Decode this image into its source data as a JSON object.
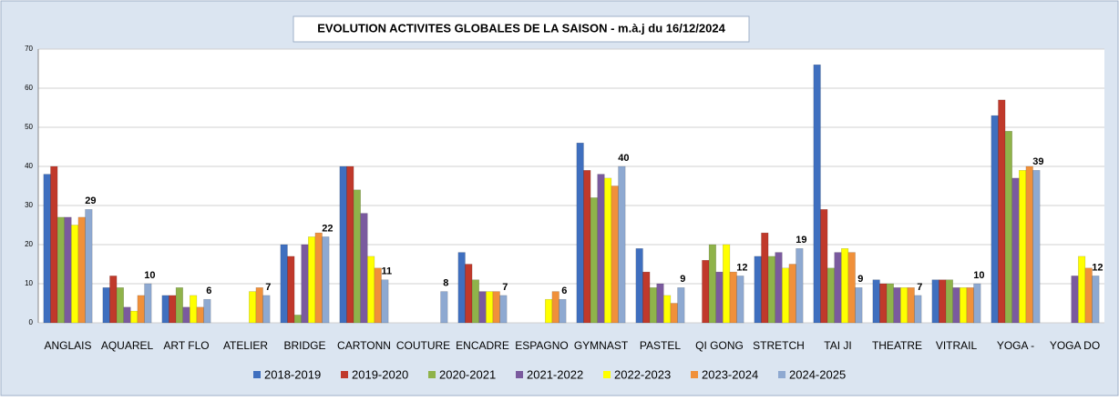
{
  "chart_data": {
    "type": "bar",
    "title": "EVOLUTION ACTIVITES GLOBALES DE LA SAISON - m.à.j du 16/12/2024",
    "categories": [
      "ANGLAIS",
      "AQUAREL",
      "ART FLO",
      "ATELIER",
      "BRIDGE",
      "CARTONN",
      "COUTURE",
      "ENCADRE",
      "ESPAGNO",
      "GYMNAST",
      "PASTEL",
      "QI GONG",
      "STRETCH",
      "TAI JI",
      "THEATRE",
      "VITRAIL",
      "YOGA -",
      "YOGA DO"
    ],
    "series": [
      {
        "name": "2018-2019",
        "color": "#3f6fbf",
        "values": [
          38,
          9,
          7,
          null,
          20,
          40,
          null,
          18,
          null,
          46,
          19,
          null,
          17,
          66,
          11,
          11,
          53,
          null
        ]
      },
      {
        "name": "2019-2020",
        "color": "#c0392b",
        "values": [
          40,
          12,
          7,
          null,
          17,
          40,
          null,
          15,
          null,
          39,
          13,
          16,
          23,
          29,
          10,
          11,
          57,
          null
        ]
      },
      {
        "name": "2020-2021",
        "color": "#8fb34a",
        "values": [
          27,
          9,
          9,
          null,
          2,
          34,
          null,
          11,
          null,
          32,
          9,
          20,
          17,
          14,
          10,
          11,
          49,
          null
        ]
      },
      {
        "name": "2021-2022",
        "color": "#7a5a9e",
        "values": [
          27,
          4,
          4,
          null,
          20,
          28,
          null,
          8,
          null,
          38,
          10,
          13,
          18,
          18,
          9,
          9,
          37,
          12
        ]
      },
      {
        "name": "2022-2023",
        "color": "#ffff00",
        "values": [
          25,
          3,
          7,
          8,
          22,
          17,
          null,
          8,
          6,
          37,
          7,
          20,
          14,
          19,
          9,
          9,
          39,
          17
        ]
      },
      {
        "name": "2023-2024",
        "color": "#f0903a",
        "values": [
          27,
          7,
          4,
          9,
          23,
          14,
          null,
          8,
          8,
          35,
          5,
          13,
          15,
          18,
          9,
          9,
          40,
          14
        ]
      },
      {
        "name": "2024-2025",
        "color": "#8ea9d1",
        "values": [
          29,
          10,
          6,
          7,
          22,
          11,
          8,
          7,
          6,
          40,
          9,
          12,
          19,
          9,
          7,
          10,
          39,
          12
        ]
      }
    ],
    "ylim": [
      0,
      70
    ],
    "yticks": [
      0,
      10,
      20,
      30,
      40,
      50,
      60,
      70
    ],
    "grid": true,
    "legend": "bottom"
  }
}
